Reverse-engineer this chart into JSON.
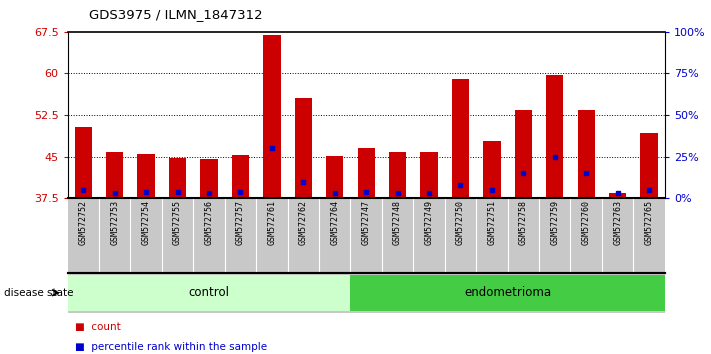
{
  "title": "GDS3975 / ILMN_1847312",
  "samples": [
    "GSM572752",
    "GSM572753",
    "GSM572754",
    "GSM572755",
    "GSM572756",
    "GSM572757",
    "GSM572761",
    "GSM572762",
    "GSM572764",
    "GSM572747",
    "GSM572748",
    "GSM572749",
    "GSM572750",
    "GSM572751",
    "GSM572758",
    "GSM572759",
    "GSM572760",
    "GSM572763",
    "GSM572765"
  ],
  "counts": [
    50.3,
    45.8,
    45.5,
    44.8,
    44.5,
    45.3,
    67.0,
    55.5,
    45.2,
    46.5,
    45.8,
    45.9,
    59.0,
    47.8,
    53.5,
    59.8,
    53.5,
    38.5,
    49.2
  ],
  "percentiles": [
    5,
    3,
    4,
    4,
    3,
    4,
    30,
    10,
    3,
    4,
    3,
    3,
    8,
    5,
    15,
    25,
    15,
    3,
    5
  ],
  "groups": [
    "control",
    "control",
    "control",
    "control",
    "control",
    "control",
    "control",
    "control",
    "control",
    "endometrioma",
    "endometrioma",
    "endometrioma",
    "endometrioma",
    "endometrioma",
    "endometrioma",
    "endometrioma",
    "endometrioma",
    "endometrioma",
    "endometrioma"
  ],
  "ymin": 37.5,
  "ymax": 67.5,
  "yticks": [
    37.5,
    45.0,
    52.5,
    60.0,
    67.5
  ],
  "right_yticks": [
    0,
    25,
    50,
    75,
    100
  ],
  "bar_color": "#cc0000",
  "dot_color": "#0000cc",
  "control_color": "#ccffcc",
  "endometrioma_color": "#44cc44",
  "bg_color": "#c8c8c8",
  "plot_bg": "#ffffff",
  "group_label_y": "disease state",
  "legend_count": "count",
  "legend_percentile": "percentile rank within the sample"
}
